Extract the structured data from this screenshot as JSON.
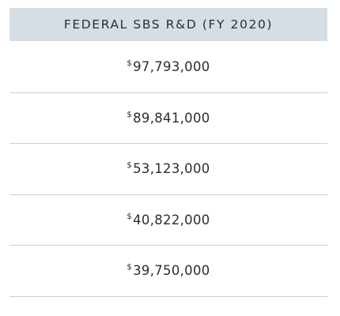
{
  "table": {
    "header": "FEDERAL SBS R&D (FY 2020)",
    "currency_symbol": "$",
    "rows": [
      {
        "amount": "97,793,000"
      },
      {
        "amount": "89,841,000"
      },
      {
        "amount": "53,123,000"
      },
      {
        "amount": "40,822,000"
      },
      {
        "amount": "39,750,000"
      }
    ]
  },
  "colors": {
    "header_bg": "#d5dde5",
    "divider": "#c8d0da",
    "text": "#2a2d33"
  }
}
